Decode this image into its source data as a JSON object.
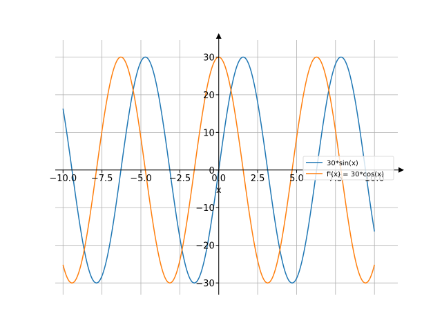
{
  "chart_data": {
    "type": "line",
    "title": "",
    "xlabel": "x",
    "ylabel": "",
    "xlim": [
      -10.5,
      11.5
    ],
    "ylim": [
      -33.1,
      34.5
    ],
    "grid": true,
    "legend_position": "center-right",
    "x_ticks": [
      -10.0,
      -7.5,
      -5.0,
      -2.5,
      0.0,
      2.5,
      5.0,
      7.5,
      10.0
    ],
    "x_tick_labels": [
      "−10.0",
      "−7.5",
      "−5.0",
      "−2.5",
      "0.0",
      "2.5",
      "5.0",
      "7.5",
      "10.0"
    ],
    "y_ticks": [
      -30,
      -20,
      -10,
      0,
      10,
      20,
      30
    ],
    "y_tick_labels": [
      "−30",
      "−20",
      "−10",
      "0",
      "10",
      "20",
      "30"
    ],
    "x_range": [
      -10,
      10
    ],
    "series": [
      {
        "name": "30*sin(x)",
        "function": "30*sin(x)",
        "color": "#1f77b4"
      },
      {
        "name": "f'(x) = 30*cos(x)",
        "function": "30*cos(x)",
        "color": "#ff7f0e"
      }
    ]
  }
}
